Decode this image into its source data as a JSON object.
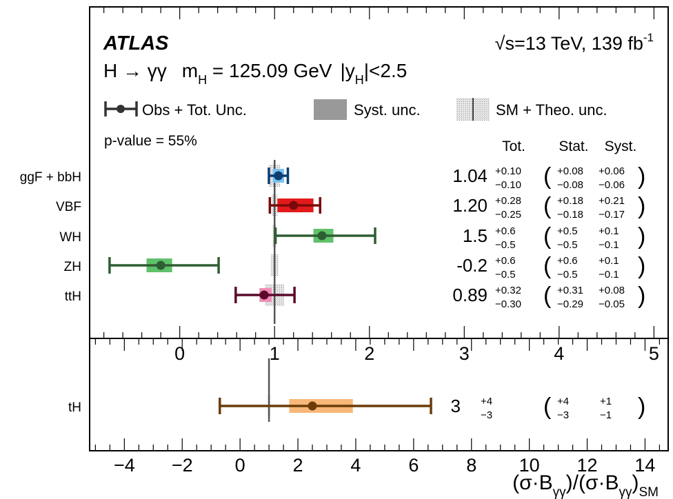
{
  "chart_data": [
    {
      "type": "scatter",
      "experiment": "ATLAS",
      "energy_text": "√s=13 TeV, 139 fb",
      "energy_sup": "-1",
      "channel_text": "H → γγ",
      "mass_text": "m",
      "mass_sub": "H",
      "mass_value": " = 125.09 GeV",
      "rapidity_text": "|y",
      "rapidity_sub": "H",
      "rapidity_cut": "|<2.5",
      "legend": {
        "obs": "Obs + Tot. Unc.",
        "syst": "Syst. unc.",
        "sm": "SM + Theo. unc."
      },
      "pvalue_text": "p-value = 55%",
      "col_headers": [
        "Tot.",
        "Stat.",
        "Syst."
      ],
      "xlim": [
        -0.95,
        5.15
      ],
      "xticks": [
        "0",
        "1",
        "2",
        "3",
        "4",
        "5"
      ],
      "sm_value": 1,
      "categories": [
        "ggF + bbH",
        "VBF",
        "WH",
        "ZH",
        "ttH"
      ],
      "rows": [
        {
          "label": "ggF + bbH",
          "value": 1.04,
          "value_text": "1.04",
          "tot_up": "+0.10",
          "tot_dn": "−0.10",
          "stat_up": "+0.08",
          "stat_dn": "−0.08",
          "syst_up": "+0.06",
          "syst_dn": "−0.06",
          "tot_hi": 1.14,
          "tot_lo": 0.94,
          "syst_hi": 1.1,
          "syst_lo": 0.98,
          "sm_lo": 0.94,
          "sm_hi": 1.06,
          "color": "#0c3d73",
          "band": "#79c2f0"
        },
        {
          "label": "VBF",
          "value": 1.2,
          "value_text": "1.20",
          "tot_up": "+0.28",
          "tot_dn": "−0.25",
          "stat_up": "+0.18",
          "stat_dn": "−0.18",
          "syst_up": "+0.21",
          "syst_dn": "−0.17",
          "tot_hi": 1.48,
          "tot_lo": 0.95,
          "syst_hi": 1.41,
          "syst_lo": 1.03,
          "sm_lo": 0.97,
          "sm_hi": 1.03,
          "color": "#7a0a0a",
          "band": "#e31a1c"
        },
        {
          "label": "WH",
          "value": 1.5,
          "value_text": "1.5",
          "tot_up": "+0.6",
          "tot_dn": "−0.5",
          "stat_up": "+0.5",
          "stat_dn": "−0.5",
          "syst_up": "+0.1",
          "syst_dn": "−0.1",
          "tot_hi": 2.06,
          "tot_lo": 1.01,
          "syst_hi": 1.62,
          "syst_lo": 1.41,
          "sm_lo": 0.98,
          "sm_hi": 1.02,
          "color": "#2e5e33",
          "band": "#5fc16a"
        },
        {
          "label": "ZH",
          "value": -0.2,
          "value_text": "-0.2",
          "tot_up": "+0.6",
          "tot_dn": "−0.5",
          "stat_up": "+0.6",
          "stat_dn": "−0.5",
          "syst_up": "+0.1",
          "syst_dn": "−0.1",
          "tot_hi": 0.41,
          "tot_lo": -0.74,
          "syst_hi": -0.08,
          "syst_lo": -0.35,
          "sm_lo": 0.96,
          "sm_hi": 1.04,
          "color": "#2e5e33",
          "band": "#5fc16a"
        },
        {
          "label": "ttH",
          "value": 0.89,
          "value_text": "0.89",
          "tot_up": "+0.32",
          "tot_dn": "−0.30",
          "stat_up": "+0.31",
          "stat_dn": "−0.29",
          "syst_up": "+0.08",
          "syst_dn": "−0.05",
          "tot_hi": 1.21,
          "tot_lo": 0.59,
          "syst_hi": 0.97,
          "syst_lo": 0.84,
          "sm_lo": 0.9,
          "sm_hi": 1.1,
          "color": "#5c0a2c",
          "band": "#f08db5"
        }
      ]
    },
    {
      "type": "scatter",
      "xlim": [
        -5.2,
        14.8
      ],
      "xticks": [
        "−4",
        "−2",
        "0",
        "2",
        "4",
        "6",
        "8",
        "10",
        "12",
        "14"
      ],
      "xlabel": "(σ·B",
      "xlabel_sub1": "γγ",
      "xlabel_mid": ")/(σ·B",
      "xlabel_sub2": "γγ",
      "xlabel_end": ")",
      "xlabel_sub3": "SM",
      "sm_value": 1,
      "categories": [
        "tH"
      ],
      "rows": [
        {
          "label": "tH",
          "value": 2.5,
          "value_text": "3",
          "tot_up": "+4",
          "tot_dn": "−3",
          "stat_up": "+4",
          "stat_dn": "−3",
          "syst_up": "+1",
          "syst_dn": "−1",
          "tot_hi": 6.6,
          "tot_lo": -0.7,
          "syst_hi": 3.9,
          "syst_lo": 1.7,
          "sm_lo": 0.95,
          "sm_hi": 1.05,
          "color": "#6b3c08",
          "band": "#f7b87a"
        }
      ]
    }
  ]
}
